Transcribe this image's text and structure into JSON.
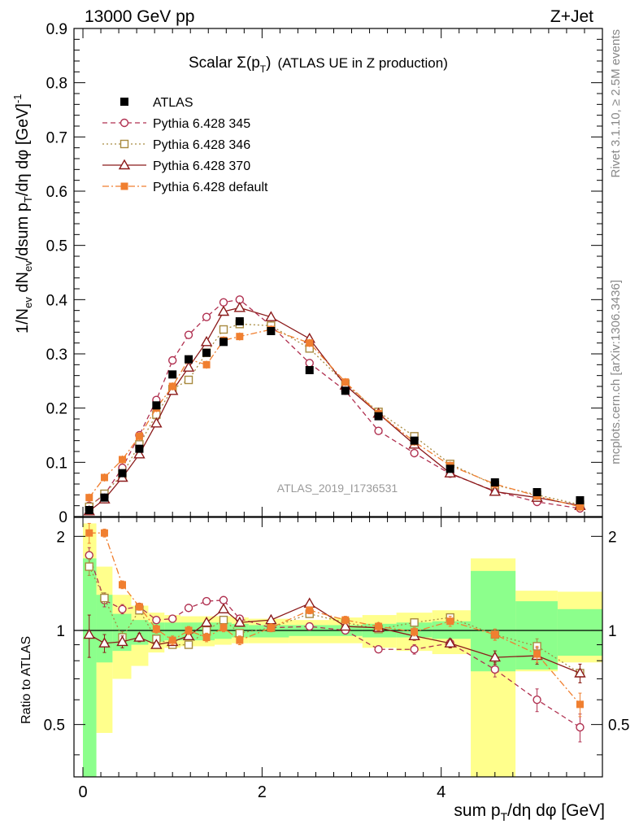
{
  "header": {
    "left": "13000 GeV pp",
    "right": "Z+Jet"
  },
  "side_labels": {
    "rivet": "Rivet 3.1.10, ≥ 2.5M events",
    "mcplots": "mcplots.cern.ch [arXiv:1306.3436]"
  },
  "chart_data": {
    "type": "line",
    "title": "Scalar Σ(p_T) (ATLAS UE in Z production)",
    "title_main": "Scalar Σ(p",
    "title_sub": "T",
    "title_close": ")",
    "title_extra": "(ATLAS UE in Z production)",
    "watermark": "ATLAS_2019_I1736531",
    "ylabel": "1/N_ev dN_ev/dsum p_T/dη dφ [GeV]^-1",
    "ratio_ylabel": "Ratio to ATLAS",
    "xlabel": "sum p_T/dη dφ [GeV]",
    "xlim": [
      -0.1,
      5.8
    ],
    "ylim": [
      0,
      0.9
    ],
    "ratio_ylim": [
      0.34,
      2.3
    ],
    "x_ticks": [
      "0",
      "2",
      "4"
    ],
    "y_ticks": [
      "0",
      "0.1",
      "0.2",
      "0.3",
      "0.4",
      "0.5",
      "0.6",
      "0.7",
      "0.8",
      "0.9"
    ],
    "ratio_ticks": [
      "0.5",
      "1",
      "2"
    ],
    "x": [
      0.07,
      0.24,
      0.44,
      0.63,
      0.82,
      1.0,
      1.18,
      1.38,
      1.57,
      1.75,
      2.1,
      2.53,
      2.93,
      3.3,
      3.7,
      4.1,
      4.6,
      5.07,
      5.55
    ],
    "bands": {
      "edges": [
        0.0,
        0.15,
        0.33,
        0.54,
        0.73,
        0.91,
        1.09,
        1.28,
        1.47,
        1.66,
        1.85,
        2.3,
        2.75,
        3.12,
        3.5,
        3.9,
        4.33,
        4.83,
        5.3,
        5.8
      ],
      "inner_lo": [
        0.34,
        0.79,
        0.86,
        0.9,
        0.92,
        0.93,
        0.93,
        0.93,
        0.94,
        0.95,
        0.95,
        0.96,
        0.96,
        0.95,
        0.95,
        0.94,
        0.74,
        0.75,
        0.83
      ],
      "inner_hi": [
        1.7,
        1.3,
        1.13,
        1.08,
        1.06,
        1.06,
        1.06,
        1.06,
        1.06,
        1.05,
        1.04,
        1.04,
        1.04,
        1.05,
        1.06,
        1.07,
        1.55,
        1.24,
        1.17
      ],
      "outer_lo": [
        0.34,
        0.47,
        0.7,
        0.77,
        0.85,
        0.88,
        0.89,
        0.89,
        0.9,
        0.91,
        0.91,
        0.91,
        0.91,
        0.88,
        0.86,
        0.84,
        0.34,
        0.74,
        0.79
      ],
      "outer_hi": [
        2.2,
        1.6,
        1.3,
        1.2,
        1.14,
        1.12,
        1.11,
        1.11,
        1.11,
        1.1,
        1.09,
        1.08,
        1.1,
        1.12,
        1.14,
        1.16,
        1.7,
        1.34,
        1.33
      ]
    },
    "series": [
      {
        "name": "ATLAS",
        "role": "data",
        "color": "#000000",
        "marker": "filled-square",
        "values": [
          0.012,
          0.035,
          0.08,
          0.125,
          0.205,
          0.262,
          0.29,
          0.302,
          0.322,
          0.36,
          0.342,
          0.27,
          0.232,
          0.185,
          0.14,
          0.088,
          0.063,
          0.045,
          0.03
        ],
        "yerr": [
          0.003,
          0.003,
          0.004,
          0.004,
          0.004,
          0.004,
          0.004,
          0.004,
          0.004,
          0.004,
          0.003,
          0.003,
          0.003,
          0.003,
          0.003,
          0.002,
          0.002,
          0.002,
          0.002
        ]
      },
      {
        "name": "Pythia 6.428 345",
        "role": "mc",
        "color": "#b03050",
        "marker": "open-circle",
        "dash": "6,4",
        "values": [
          0.02,
          0.04,
          0.09,
          0.15,
          0.215,
          0.288,
          0.335,
          0.368,
          0.395,
          0.4,
          0.352,
          0.283,
          0.232,
          0.158,
          0.117,
          0.079,
          0.047,
          0.027,
          0.015
        ],
        "ratio": [
          1.74,
          1.25,
          1.17,
          1.19,
          1.08,
          1.09,
          1.18,
          1.24,
          1.25,
          1.09,
          1.02,
          1.03,
          1.0,
          0.87,
          0.87,
          0.91,
          0.75,
          0.6,
          0.49
        ],
        "ratio_err": [
          0.1,
          0.06,
          0.04,
          0.03,
          0.02,
          0.02,
          0.02,
          0.02,
          0.02,
          0.02,
          0.02,
          0.02,
          0.02,
          0.02,
          0.03,
          0.03,
          0.04,
          0.05,
          0.05
        ]
      },
      {
        "name": "Pythia 6.428 346",
        "role": "mc",
        "color": "#a88a40",
        "marker": "open-square",
        "dash": "2,3",
        "values": [
          0.018,
          0.042,
          0.078,
          0.133,
          0.188,
          0.235,
          0.252,
          0.302,
          0.345,
          0.355,
          0.352,
          0.31,
          0.245,
          0.193,
          0.148,
          0.097,
          0.058,
          0.04,
          0.022
        ],
        "ratio": [
          1.6,
          1.27,
          0.95,
          1.16,
          0.94,
          0.9,
          0.9,
          1.0,
          1.08,
          0.98,
          1.02,
          1.13,
          1.06,
          1.01,
          1.06,
          1.1,
          0.97,
          0.89,
          0.73
        ],
        "ratio_err": [
          0.1,
          0.05,
          0.04,
          0.03,
          0.02,
          0.02,
          0.02,
          0.02,
          0.02,
          0.02,
          0.02,
          0.02,
          0.02,
          0.02,
          0.03,
          0.03,
          0.04,
          0.05,
          0.05
        ]
      },
      {
        "name": "Pythia 6.428 370",
        "role": "mc",
        "color": "#8b1a1a",
        "marker": "open-triangle",
        "dash": "",
        "values": [
          0.01,
          0.032,
          0.072,
          0.115,
          0.172,
          0.232,
          0.275,
          0.322,
          0.378,
          0.385,
          0.368,
          0.328,
          0.242,
          0.19,
          0.133,
          0.08,
          0.046,
          0.035,
          0.02
        ],
        "ratio": [
          0.97,
          0.91,
          0.92,
          0.95,
          0.9,
          0.92,
          0.96,
          1.06,
          1.17,
          1.06,
          1.08,
          1.22,
          1.03,
          1.02,
          0.96,
          0.91,
          0.82,
          0.83,
          0.73
        ],
        "ratio_err": [
          0.15,
          0.06,
          0.04,
          0.03,
          0.02,
          0.02,
          0.02,
          0.02,
          0.02,
          0.02,
          0.02,
          0.02,
          0.02,
          0.02,
          0.03,
          0.03,
          0.04,
          0.05,
          0.05
        ]
      },
      {
        "name": "Pythia 6.428 default",
        "role": "mc",
        "color": "#f07f30",
        "marker": "filled-square",
        "dash": "8,3,2,3",
        "values": [
          0.035,
          0.072,
          0.105,
          0.148,
          0.2,
          0.24,
          0.29,
          0.28,
          0.325,
          0.332,
          0.345,
          0.32,
          0.248,
          0.19,
          0.138,
          0.094,
          0.06,
          0.038,
          0.018
        ],
        "ratio": [
          2.05,
          2.05,
          1.4,
          1.19,
          1.01,
          0.93,
          1.0,
          0.95,
          1.02,
          0.93,
          1.02,
          1.16,
          1.08,
          1.03,
          0.99,
          1.07,
          0.97,
          0.84,
          0.58
        ],
        "ratio_err": [
          0.15,
          0.06,
          0.04,
          0.03,
          0.03,
          0.03,
          0.03,
          0.03,
          0.03,
          0.03,
          0.03,
          0.03,
          0.03,
          0.03,
          0.03,
          0.04,
          0.04,
          0.05,
          0.05
        ]
      }
    ]
  }
}
